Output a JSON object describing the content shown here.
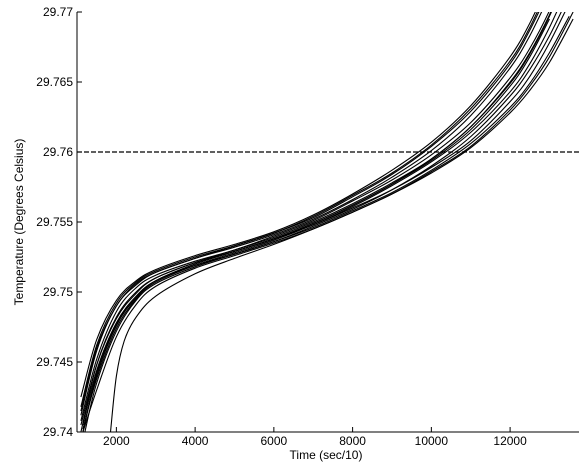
{
  "chart_data": {
    "type": "line",
    "title": "",
    "xlabel": "Time (sec/10)",
    "ylabel": "Temperature (Degrees Celsius)",
    "xlim": [
      1000,
      13750
    ],
    "ylim": [
      29.74,
      29.77
    ],
    "xticks": [
      2000,
      4000,
      6000,
      8000,
      10000,
      12000
    ],
    "xtick_labels": [
      "2000",
      "4000",
      "6000",
      "8000",
      "10000",
      "12000"
    ],
    "yticks": [
      29.74,
      29.745,
      29.75,
      29.755,
      29.76,
      29.765,
      29.77
    ],
    "ytick_labels": [
      "29.74",
      "29.745",
      "29.75",
      "29.755",
      "29.76",
      "29.765",
      "29.77"
    ],
    "grid": false,
    "reference_line": {
      "y": 29.76,
      "style": "dashed"
    },
    "series": [
      {
        "x": [
          1100,
          1500,
          2000,
          2500,
          3000,
          4000,
          5000,
          6000,
          7000,
          8000,
          9000,
          10000,
          11000,
          12000,
          12500,
          13000,
          13500
        ],
        "values": [
          29.74,
          29.7448,
          29.7482,
          29.75,
          29.751,
          29.7521,
          29.753,
          29.7539,
          29.755,
          29.7563,
          29.7578,
          29.7595,
          29.7618,
          29.765,
          29.7671,
          29.7698,
          29.773
        ]
      },
      {
        "x": [
          1100,
          1500,
          2000,
          2500,
          3000,
          4000,
          5000,
          6000,
          7000,
          8000,
          9000,
          10000,
          11000,
          12000,
          12500,
          13000
        ],
        "values": [
          29.7412,
          29.7458,
          29.749,
          29.7505,
          29.7514,
          29.7524,
          29.7532,
          29.7541,
          29.7552,
          29.7566,
          29.7582,
          29.7601,
          29.7626,
          29.766,
          29.7683,
          29.7712
        ]
      },
      {
        "x": [
          1150,
          1500,
          2000,
          2500,
          3000,
          4000,
          5000,
          6000,
          7000,
          8000,
          9000,
          10000,
          11000,
          12000,
          12500,
          13000
        ],
        "values": [
          29.74,
          29.744,
          29.7476,
          29.7496,
          29.7508,
          29.752,
          29.7529,
          29.7538,
          29.7549,
          29.7562,
          29.7577,
          29.7594,
          29.7616,
          29.7647,
          29.7668,
          29.7695
        ]
      },
      {
        "x": [
          1100,
          1500,
          2000,
          2500,
          3000,
          4000,
          5000,
          6000,
          7000,
          8000,
          9000,
          10000,
          11000,
          12000,
          12500,
          13000
        ],
        "values": [
          29.7425,
          29.7466,
          29.7494,
          29.7508,
          29.7516,
          29.7526,
          29.7534,
          29.7543,
          29.7555,
          29.757,
          29.7587,
          29.7607,
          29.7633,
          29.7668,
          29.7692,
          29.7722
        ]
      },
      {
        "x": [
          1150,
          1500,
          2000,
          2500,
          3000,
          4000,
          5000,
          6000,
          7000,
          8000,
          9000,
          10000,
          11000,
          12000,
          12500,
          13000,
          13500
        ],
        "values": [
          29.7405,
          29.7444,
          29.7478,
          29.7497,
          29.7508,
          29.7519,
          29.7527,
          29.7536,
          29.7547,
          29.7559,
          29.7573,
          29.759,
          29.7611,
          29.764,
          29.7659,
          29.7683,
          29.7712
        ]
      },
      {
        "x": [
          1200,
          1500,
          2000,
          2500,
          3000,
          4000,
          5000,
          6000,
          7000,
          8000,
          9000,
          10000,
          11000,
          12000,
          12500,
          13000,
          13500
        ],
        "values": [
          29.74,
          29.7435,
          29.7472,
          29.7494,
          29.7506,
          29.7518,
          29.7527,
          29.7536,
          29.7546,
          29.7558,
          29.7571,
          29.7587,
          29.7606,
          29.7632,
          29.7649,
          29.7671,
          29.7697
        ]
      },
      {
        "x": [
          1100,
          1500,
          2000,
          2500,
          3000,
          4000,
          5000,
          6000,
          7000,
          8000,
          9000,
          10000,
          11000,
          12000,
          12500,
          13000
        ],
        "values": [
          29.7418,
          29.7462,
          29.7492,
          29.7507,
          29.7515,
          29.7525,
          29.7533,
          29.7542,
          29.7553,
          29.7568,
          29.7584,
          29.7604,
          29.7629,
          29.7663,
          29.7687,
          29.7716
        ]
      },
      {
        "x": [
          1150,
          1500,
          2000,
          2500,
          3000,
          4000,
          5000,
          6000,
          7000,
          8000,
          9000,
          10000,
          11000,
          12000,
          12500,
          13000,
          13500
        ],
        "values": [
          29.7402,
          29.7438,
          29.7474,
          29.7495,
          29.7507,
          29.7519,
          29.7528,
          29.7537,
          29.7548,
          29.7561,
          29.7576,
          29.7593,
          29.7614,
          29.7643,
          29.7663,
          29.7689,
          29.772
        ]
      },
      {
        "x": [
          1100,
          1500,
          2000,
          2500,
          3000,
          4000,
          5000,
          6000,
          7000,
          8000,
          9000,
          10000,
          11000,
          12000,
          12500,
          13000,
          13500
        ],
        "values": [
          29.7408,
          29.7452,
          29.7486,
          29.7503,
          29.7512,
          29.7522,
          29.753,
          29.754,
          29.7551,
          29.7565,
          29.758,
          29.7598,
          29.7621,
          29.7653,
          29.7674,
          29.7701,
          29.7735
        ]
      },
      {
        "x": [
          1150,
          1500,
          2000,
          2500,
          3000,
          4000,
          5000,
          6000,
          7000,
          8000,
          9000,
          10000,
          11000,
          12000,
          12500,
          13000,
          13600
        ],
        "values": [
          29.74,
          29.743,
          29.7468,
          29.7491,
          29.7504,
          29.7517,
          29.7526,
          29.7535,
          29.7545,
          29.7557,
          29.757,
          29.7585,
          29.7603,
          29.7628,
          29.7644,
          29.7664,
          29.7695
        ]
      },
      {
        "x": [
          1100,
          1500,
          2000,
          2500,
          3000,
          4000,
          5000,
          6000,
          7000,
          8000,
          9000,
          10000,
          11000,
          12000,
          12500,
          13000
        ],
        "values": [
          29.7415,
          29.746,
          29.749,
          29.7506,
          29.7514,
          29.7524,
          29.7533,
          29.7542,
          29.7554,
          29.7569,
          29.7585,
          29.7605,
          29.7631,
          29.7665,
          29.7689,
          29.7719
        ]
      },
      {
        "x": [
          1150,
          1500,
          2000,
          2500,
          3000,
          4000,
          5000,
          6000,
          7000,
          8000,
          9000,
          10000,
          11000,
          12000,
          12500,
          13000,
          13500
        ],
        "values": [
          29.74,
          29.7442,
          29.7477,
          29.7496,
          29.7508,
          29.752,
          29.7529,
          29.7538,
          29.7549,
          29.7562,
          29.7577,
          29.7595,
          29.7618,
          29.7649,
          29.767,
          29.7697,
          29.773
        ]
      },
      {
        "x": [
          1850,
          2000,
          2200,
          2500,
          3000,
          4000,
          5000,
          6000,
          7000,
          8000,
          9000,
          10000,
          11000,
          12000,
          12500,
          13000,
          13600
        ],
        "values": [
          29.74,
          29.744,
          29.7465,
          29.7482,
          29.7497,
          29.7513,
          29.7524,
          29.7534,
          29.7545,
          29.7557,
          29.757,
          29.7586,
          29.7604,
          29.763,
          29.7647,
          29.7668,
          29.77
        ]
      },
      {
        "x": [
          1100,
          1500,
          2000,
          2500,
          3000,
          4000,
          5000,
          6000,
          7000,
          8000,
          9000,
          10000,
          11000,
          12000,
          12500,
          13000,
          13600
        ],
        "values": [
          29.7405,
          29.7448,
          29.7481,
          29.7499,
          29.751,
          29.7521,
          29.7529,
          29.7538,
          29.7548,
          29.756,
          29.7573,
          29.7589,
          29.7608,
          29.7636,
          29.7654,
          29.7678,
          29.7712
        ]
      }
    ]
  }
}
